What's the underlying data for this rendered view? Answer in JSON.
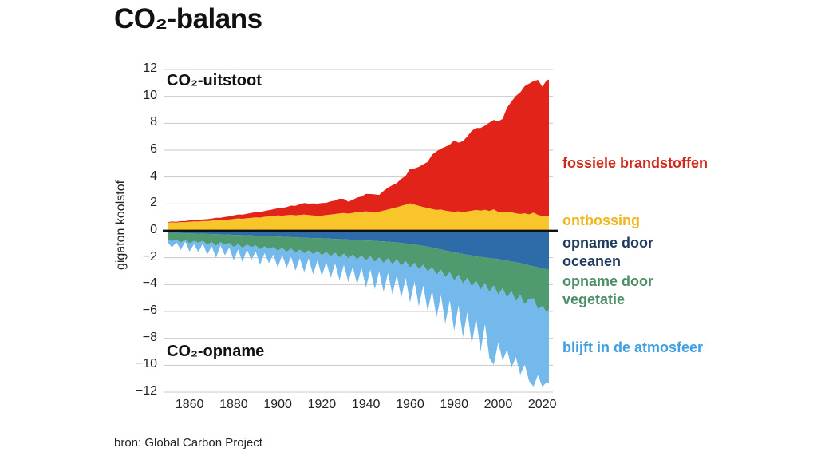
{
  "page": {
    "title": "CO₂-balans",
    "source": "bron: Global Carbon Project"
  },
  "chart": {
    "upper_label": "CO₂-uitstoot",
    "lower_label": "CO₂-opname"
  },
  "chart_data": {
    "type": "area",
    "stacked": true,
    "title": "CO₂-balans",
    "xlabel": "",
    "ylabel": "gigaton koolstof",
    "xlim": [
      1850,
      2023
    ],
    "ylim": [
      -12,
      12
    ],
    "grid": true,
    "legend_position": "right",
    "colors": {
      "grid_line": "#c9c9c9",
      "zero_line": "#111111",
      "background": "#ffffff"
    },
    "yticks": [
      {
        "v": 12,
        "label": "12"
      },
      {
        "v": 10,
        "label": "10"
      },
      {
        "v": 8,
        "label": "8"
      },
      {
        "v": 6,
        "label": "6"
      },
      {
        "v": 4,
        "label": "4"
      },
      {
        "v": 2,
        "label": "2"
      },
      {
        "v": 0,
        "label": "0"
      },
      {
        "v": -2,
        "label": "−2"
      },
      {
        "v": -4,
        "label": "−4"
      },
      {
        "v": -6,
        "label": "−6"
      },
      {
        "v": -8,
        "label": "−8"
      },
      {
        "v": -10,
        "label": "−10"
      },
      {
        "v": -12,
        "label": "−12"
      }
    ],
    "xticks": [
      {
        "v": 1860,
        "label": "1860"
      },
      {
        "v": 1880,
        "label": "1880"
      },
      {
        "v": 1900,
        "label": "1900"
      },
      {
        "v": 1920,
        "label": "1920"
      },
      {
        "v": 1940,
        "label": "1940"
      },
      {
        "v": 1960,
        "label": "1960"
      },
      {
        "v": 1980,
        "label": "1980"
      },
      {
        "v": 2000,
        "label": "2000"
      },
      {
        "v": 2020,
        "label": "2020"
      }
    ],
    "x": [
      1850,
      1852,
      1854,
      1856,
      1858,
      1860,
      1862,
      1864,
      1866,
      1868,
      1870,
      1872,
      1874,
      1876,
      1878,
      1880,
      1882,
      1884,
      1886,
      1888,
      1890,
      1892,
      1894,
      1896,
      1898,
      1900,
      1902,
      1904,
      1906,
      1908,
      1910,
      1912,
      1914,
      1916,
      1918,
      1920,
      1922,
      1924,
      1926,
      1928,
      1930,
      1932,
      1934,
      1936,
      1938,
      1940,
      1942,
      1944,
      1946,
      1948,
      1950,
      1952,
      1954,
      1956,
      1958,
      1960,
      1962,
      1964,
      1966,
      1968,
      1970,
      1972,
      1974,
      1976,
      1978,
      1980,
      1982,
      1984,
      1986,
      1988,
      1990,
      1992,
      1994,
      1996,
      1998,
      2000,
      2002,
      2004,
      2006,
      2008,
      2010,
      2012,
      2014,
      2016,
      2018,
      2020,
      2022,
      2023
    ],
    "series": [
      {
        "name": "ontbossing",
        "side": "positive",
        "stack_order": 1,
        "color": "#f8c52b",
        "values": [
          0.6,
          0.63,
          0.61,
          0.65,
          0.64,
          0.68,
          0.7,
          0.69,
          0.73,
          0.72,
          0.76,
          0.78,
          0.77,
          0.82,
          0.84,
          0.88,
          0.92,
          0.89,
          0.94,
          0.97,
          1.0,
          0.98,
          1.04,
          1.07,
          1.1,
          1.14,
          1.12,
          1.16,
          1.19,
          1.15,
          1.18,
          1.21,
          1.17,
          1.14,
          1.1,
          1.13,
          1.17,
          1.21,
          1.25,
          1.29,
          1.32,
          1.28,
          1.33,
          1.38,
          1.42,
          1.45,
          1.4,
          1.35,
          1.42,
          1.51,
          1.58,
          1.67,
          1.75,
          1.85,
          1.94,
          2.05,
          1.95,
          1.86,
          1.77,
          1.7,
          1.62,
          1.55,
          1.58,
          1.5,
          1.45,
          1.41,
          1.45,
          1.39,
          1.44,
          1.5,
          1.55,
          1.5,
          1.56,
          1.48,
          1.6,
          1.4,
          1.35,
          1.42,
          1.38,
          1.3,
          1.25,
          1.3,
          1.22,
          1.35,
          1.18,
          1.1,
          1.12,
          1.05
        ]
      },
      {
        "name": "fossiele brandstoffen",
        "side": "positive",
        "stack_order": 2,
        "color": "#e2231a",
        "values": [
          0.05,
          0.06,
          0.06,
          0.07,
          0.08,
          0.09,
          0.1,
          0.11,
          0.12,
          0.14,
          0.15,
          0.18,
          0.19,
          0.21,
          0.23,
          0.26,
          0.29,
          0.31,
          0.32,
          0.36,
          0.39,
          0.41,
          0.43,
          0.47,
          0.5,
          0.54,
          0.57,
          0.61,
          0.68,
          0.71,
          0.79,
          0.85,
          0.85,
          0.9,
          0.92,
          0.93,
          0.91,
          0.98,
          1.0,
          1.09,
          1.05,
          0.88,
          0.97,
          1.09,
          1.13,
          1.3,
          1.33,
          1.36,
          1.25,
          1.46,
          1.63,
          1.72,
          1.8,
          2.01,
          2.14,
          2.57,
          2.69,
          2.9,
          3.17,
          3.42,
          4.05,
          4.36,
          4.53,
          4.75,
          4.96,
          5.32,
          5.11,
          5.28,
          5.58,
          5.94,
          6.1,
          6.15,
          6.27,
          6.57,
          6.65,
          6.74,
          6.98,
          7.74,
          8.23,
          8.74,
          9.05,
          9.46,
          9.72,
          9.78,
          10.05,
          9.62,
          10.08,
          10.2
        ]
      },
      {
        "name": "opname door oceanen",
        "side": "negative",
        "stack_order": 1,
        "color": "#2d6ca8",
        "values": [
          -0.15,
          -0.16,
          -0.16,
          -0.17,
          -0.18,
          -0.19,
          -0.2,
          -0.21,
          -0.22,
          -0.23,
          -0.24,
          -0.25,
          -0.26,
          -0.27,
          -0.28,
          -0.3,
          -0.31,
          -0.32,
          -0.33,
          -0.34,
          -0.36,
          -0.37,
          -0.38,
          -0.4,
          -0.41,
          -0.43,
          -0.44,
          -0.46,
          -0.47,
          -0.49,
          -0.5,
          -0.52,
          -0.53,
          -0.54,
          -0.55,
          -0.56,
          -0.58,
          -0.59,
          -0.61,
          -0.62,
          -0.64,
          -0.65,
          -0.67,
          -0.68,
          -0.7,
          -0.72,
          -0.73,
          -0.75,
          -0.77,
          -0.79,
          -0.81,
          -0.84,
          -0.87,
          -0.9,
          -0.94,
          -0.98,
          -1.02,
          -1.07,
          -1.12,
          -1.18,
          -1.25,
          -1.32,
          -1.39,
          -1.46,
          -1.53,
          -1.6,
          -1.66,
          -1.72,
          -1.78,
          -1.84,
          -1.9,
          -1.94,
          -1.98,
          -2.02,
          -2.06,
          -2.1,
          -2.16,
          -2.22,
          -2.28,
          -2.34,
          -2.4,
          -2.48,
          -2.56,
          -2.64,
          -2.72,
          -2.8,
          -2.86,
          -2.9
        ]
      },
      {
        "name": "opname door vegetatie",
        "side": "negative",
        "stack_order": 2,
        "color": "#4f9a6e",
        "values": [
          -0.45,
          -0.62,
          -0.5,
          -0.7,
          -0.48,
          -0.75,
          -0.55,
          -0.68,
          -0.52,
          -0.8,
          -0.6,
          -0.85,
          -0.58,
          -0.75,
          -0.62,
          -0.9,
          -0.68,
          -0.95,
          -0.7,
          -0.88,
          -0.72,
          -1.0,
          -0.78,
          -0.95,
          -0.8,
          -1.05,
          -0.82,
          -1.1,
          -0.85,
          -1.12,
          -0.9,
          -1.15,
          -0.92,
          -1.2,
          -0.95,
          -1.25,
          -1.0,
          -1.3,
          -1.02,
          -1.35,
          -1.05,
          -1.4,
          -1.1,
          -1.45,
          -1.12,
          -1.5,
          -1.15,
          -1.55,
          -1.2,
          -1.6,
          -1.22,
          -1.65,
          -1.25,
          -1.7,
          -1.3,
          -1.75,
          -1.35,
          -1.8,
          -1.4,
          -1.85,
          -1.45,
          -1.95,
          -1.5,
          -2.0,
          -1.55,
          -2.1,
          -1.6,
          -2.2,
          -1.7,
          -2.3,
          -1.8,
          -2.45,
          -1.9,
          -2.55,
          -2.0,
          -2.65,
          -2.1,
          -2.75,
          -2.2,
          -2.9,
          -2.35,
          -3.0,
          -2.5,
          -2.4,
          -3.1,
          -2.8,
          -3.2,
          -2.95
        ]
      },
      {
        "name": "blijft in de atmosfeer",
        "side": "negative",
        "stack_order": 3,
        "color": "#74b9ec",
        "values": [
          -0.25,
          -0.45,
          -0.2,
          -0.55,
          -0.15,
          -0.6,
          -0.25,
          -0.7,
          -0.2,
          -0.75,
          -0.3,
          -0.9,
          -0.25,
          -0.8,
          -0.35,
          -1.0,
          -0.4,
          -1.05,
          -0.35,
          -0.95,
          -0.45,
          -1.15,
          -0.5,
          -1.05,
          -0.55,
          -1.25,
          -0.5,
          -1.2,
          -0.6,
          -1.35,
          -0.65,
          -1.4,
          -0.6,
          -1.5,
          -0.7,
          -1.55,
          -0.75,
          -1.6,
          -0.8,
          -1.7,
          -0.85,
          -1.75,
          -0.9,
          -1.85,
          -0.95,
          -2.0,
          -1.0,
          -2.05,
          -1.05,
          -2.15,
          -1.1,
          -2.25,
          -1.15,
          -2.4,
          -1.25,
          -2.6,
          -1.4,
          -2.75,
          -1.55,
          -2.95,
          -1.75,
          -3.2,
          -1.9,
          -3.45,
          -2.1,
          -3.75,
          -2.3,
          -4.0,
          -2.55,
          -4.3,
          -2.8,
          -4.6,
          -3.05,
          -4.9,
          -5.9,
          -3.55,
          -5.4,
          -3.85,
          -5.7,
          -4.15,
          -5.95,
          -4.45,
          -6.1,
          -6.55,
          -4.9,
          -6.0,
          -5.2,
          -5.45
        ]
      }
    ],
    "legend": [
      {
        "label": "fossiele brandstoffen",
        "color": "#d2281a"
      },
      {
        "label": "ontbossing",
        "color": "#f1b61e"
      },
      {
        "label": "opname door\noceanen",
        "color": "#1d3c5e"
      },
      {
        "label": "opname door\nvegetatie",
        "color": "#4d8e68"
      },
      {
        "label": "blijft in de atmosfeer",
        "color": "#3f9fe0"
      }
    ]
  }
}
